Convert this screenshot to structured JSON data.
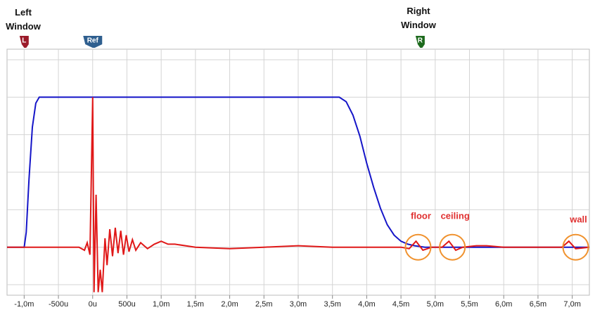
{
  "chart_data": {
    "type": "line",
    "xlim": [
      -1.25,
      7.25
    ],
    "ylim": [
      -0.32,
      1.32
    ],
    "xticks": [
      {
        "value": -1.0,
        "label": "-1,0m"
      },
      {
        "value": -0.5,
        "label": "-500u"
      },
      {
        "value": 0,
        "label": "0u"
      },
      {
        "value": 0.5,
        "label": "500u"
      },
      {
        "value": 1.0,
        "label": "1,0m"
      },
      {
        "value": 1.5,
        "label": "1,5m"
      },
      {
        "value": 2.0,
        "label": "2,0m"
      },
      {
        "value": 2.5,
        "label": "2,5m"
      },
      {
        "value": 3.0,
        "label": "3,0m"
      },
      {
        "value": 3.5,
        "label": "3,5m"
      },
      {
        "value": 4.0,
        "label": "4,0m"
      },
      {
        "value": 4.5,
        "label": "4,5m"
      },
      {
        "value": 5.0,
        "label": "5,0m"
      },
      {
        "value": 5.5,
        "label": "5,5m"
      },
      {
        "value": 6.0,
        "label": "6,0m"
      },
      {
        "value": 6.5,
        "label": "6,5m"
      },
      {
        "value": 7.0,
        "label": "7,0m"
      }
    ],
    "yticks": [
      -0.25,
      0,
      0.25,
      0.5,
      0.75,
      1,
      1.25
    ],
    "grid": true,
    "series": [
      {
        "color": "#1515c8",
        "x": [
          -1.25,
          -1.0,
          -0.97,
          -0.93,
          -0.88,
          -0.83,
          -0.78,
          3.6,
          3.7,
          3.8,
          3.9,
          4.0,
          4.1,
          4.2,
          4.3,
          4.4,
          4.5,
          4.6,
          4.7,
          4.85,
          5.0,
          7.25
        ],
        "values": [
          0,
          0,
          0.1,
          0.45,
          0.8,
          0.96,
          1,
          1,
          0.97,
          0.88,
          0.74,
          0.56,
          0.4,
          0.26,
          0.15,
          0.08,
          0.04,
          0.02,
          0.01,
          0,
          0,
          0
        ]
      },
      {
        "color": "#e01818",
        "x": [
          -1.25,
          -0.2,
          -0.12,
          -0.08,
          -0.04,
          0,
          0.02,
          0.05,
          0.08,
          0.11,
          0.14,
          0.18,
          0.21,
          0.25,
          0.29,
          0.33,
          0.37,
          0.41,
          0.45,
          0.49,
          0.53,
          0.58,
          0.63,
          0.7,
          0.8,
          0.9,
          1.0,
          1.1,
          1.2,
          1.5,
          2.0,
          2.5,
          3.0,
          3.5,
          4.5,
          4.62,
          4.72,
          4.82,
          4.95,
          5.1,
          5.2,
          5.3,
          5.4,
          5.6,
          5.75,
          6.0,
          6.85,
          6.95,
          7.05,
          7.25
        ],
        "values": [
          0,
          0,
          -0.02,
          0.03,
          -0.05,
          1.0,
          -0.3,
          0.35,
          -0.3,
          -0.15,
          -0.3,
          0.06,
          -0.12,
          0.12,
          -0.06,
          0.13,
          -0.04,
          0.11,
          -0.05,
          0.08,
          -0.03,
          0.05,
          -0.02,
          0.03,
          -0.01,
          0.02,
          0.04,
          0.02,
          0.02,
          0,
          -0.01,
          0,
          0.01,
          0,
          0,
          -0.01,
          0.04,
          -0.02,
          0,
          0,
          0.04,
          -0.02,
          0,
          0.01,
          0.01,
          0,
          0,
          0.04,
          -0.01,
          0
        ]
      }
    ],
    "markers": [
      {
        "label": "L",
        "x": -1.0,
        "color": "#9b1b2a"
      },
      {
        "label": "Ref",
        "x": 0,
        "color": "#2f5f8f"
      },
      {
        "label": "R",
        "x": 4.78,
        "color": "#1d6a1d"
      }
    ],
    "annotations": [
      {
        "text": "Left Window"
      },
      {
        "text": "Right Window"
      },
      {
        "text": "floor",
        "x": 4.75
      },
      {
        "text": "ceiling",
        "x": 5.25
      },
      {
        "text": "wall",
        "x": 7.05
      }
    ]
  }
}
